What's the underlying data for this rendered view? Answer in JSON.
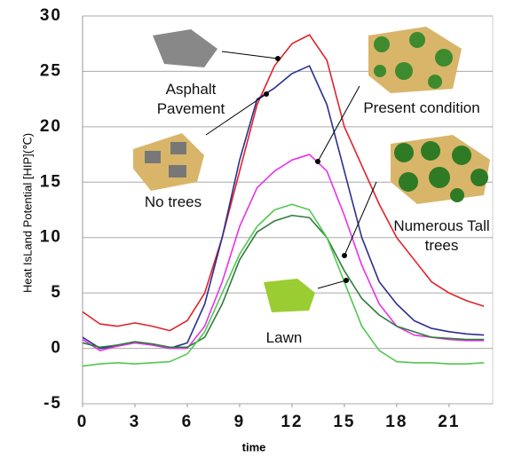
{
  "chart_data": {
    "type": "line",
    "x_label": "time",
    "y_label": "Heat IsLand Potential [HIP](℃)",
    "x": [
      0,
      1,
      2,
      3,
      4,
      5,
      6,
      7,
      8,
      9,
      10,
      11,
      12,
      13,
      14,
      15,
      16,
      17,
      18,
      19,
      20,
      21,
      22,
      23
    ],
    "xlim": [
      0,
      23.5
    ],
    "xticks": [
      0,
      3,
      6,
      9,
      12,
      15,
      18,
      21
    ],
    "ylim": [
      -5,
      30
    ],
    "yticks": [
      -5,
      0,
      5,
      10,
      15,
      20,
      25,
      30
    ],
    "grid": true,
    "series": [
      {
        "name": "Asphalt Pavement",
        "color": "#e0222a",
        "values": [
          3.3,
          2.2,
          2,
          2.3,
          2,
          1.6,
          2.5,
          5,
          10,
          16,
          22,
          25.5,
          27.5,
          28.3,
          26,
          20,
          16.5,
          13,
          10,
          8,
          6,
          5,
          4.3,
          3.8
        ]
      },
      {
        "name": "No trees",
        "color": "#2b2f8f",
        "values": [
          1,
          0,
          0.2,
          0.5,
          0.3,
          0,
          0.5,
          4,
          10,
          17,
          22.5,
          23.5,
          24.8,
          25.5,
          22,
          16,
          10,
          6,
          4,
          2.5,
          1.8,
          1.5,
          1.3,
          1.2
        ]
      },
      {
        "name": "Present condition",
        "color": "#e832e8",
        "values": [
          0.8,
          -0.2,
          0.2,
          0.5,
          0.3,
          0,
          0,
          2,
          6,
          11,
          14.5,
          16,
          17,
          17.5,
          16,
          12,
          7.5,
          4,
          2,
          1.2,
          1,
          0.8,
          0.7,
          0.7
        ]
      },
      {
        "name": "Numerous Tall trees",
        "color": "#2e7d3a",
        "values": [
          0.5,
          0.1,
          0.3,
          0.6,
          0.4,
          0.1,
          0.1,
          1,
          4,
          8,
          10.5,
          11.5,
          12,
          11.8,
          10,
          7,
          4.5,
          3,
          2,
          1.5,
          1,
          0.9,
          0.8,
          0.8
        ]
      },
      {
        "name": "Lawn",
        "color": "#52c852",
        "values": [
          -1.6,
          -1.4,
          -1.3,
          -1.4,
          -1.3,
          -1.2,
          -0.5,
          1.5,
          5,
          8.5,
          11,
          12.5,
          13,
          12.5,
          10,
          6,
          2,
          -0.2,
          -1.2,
          -1.3,
          -1.3,
          -1.4,
          -1.4,
          -1.3
        ]
      }
    ]
  }
}
